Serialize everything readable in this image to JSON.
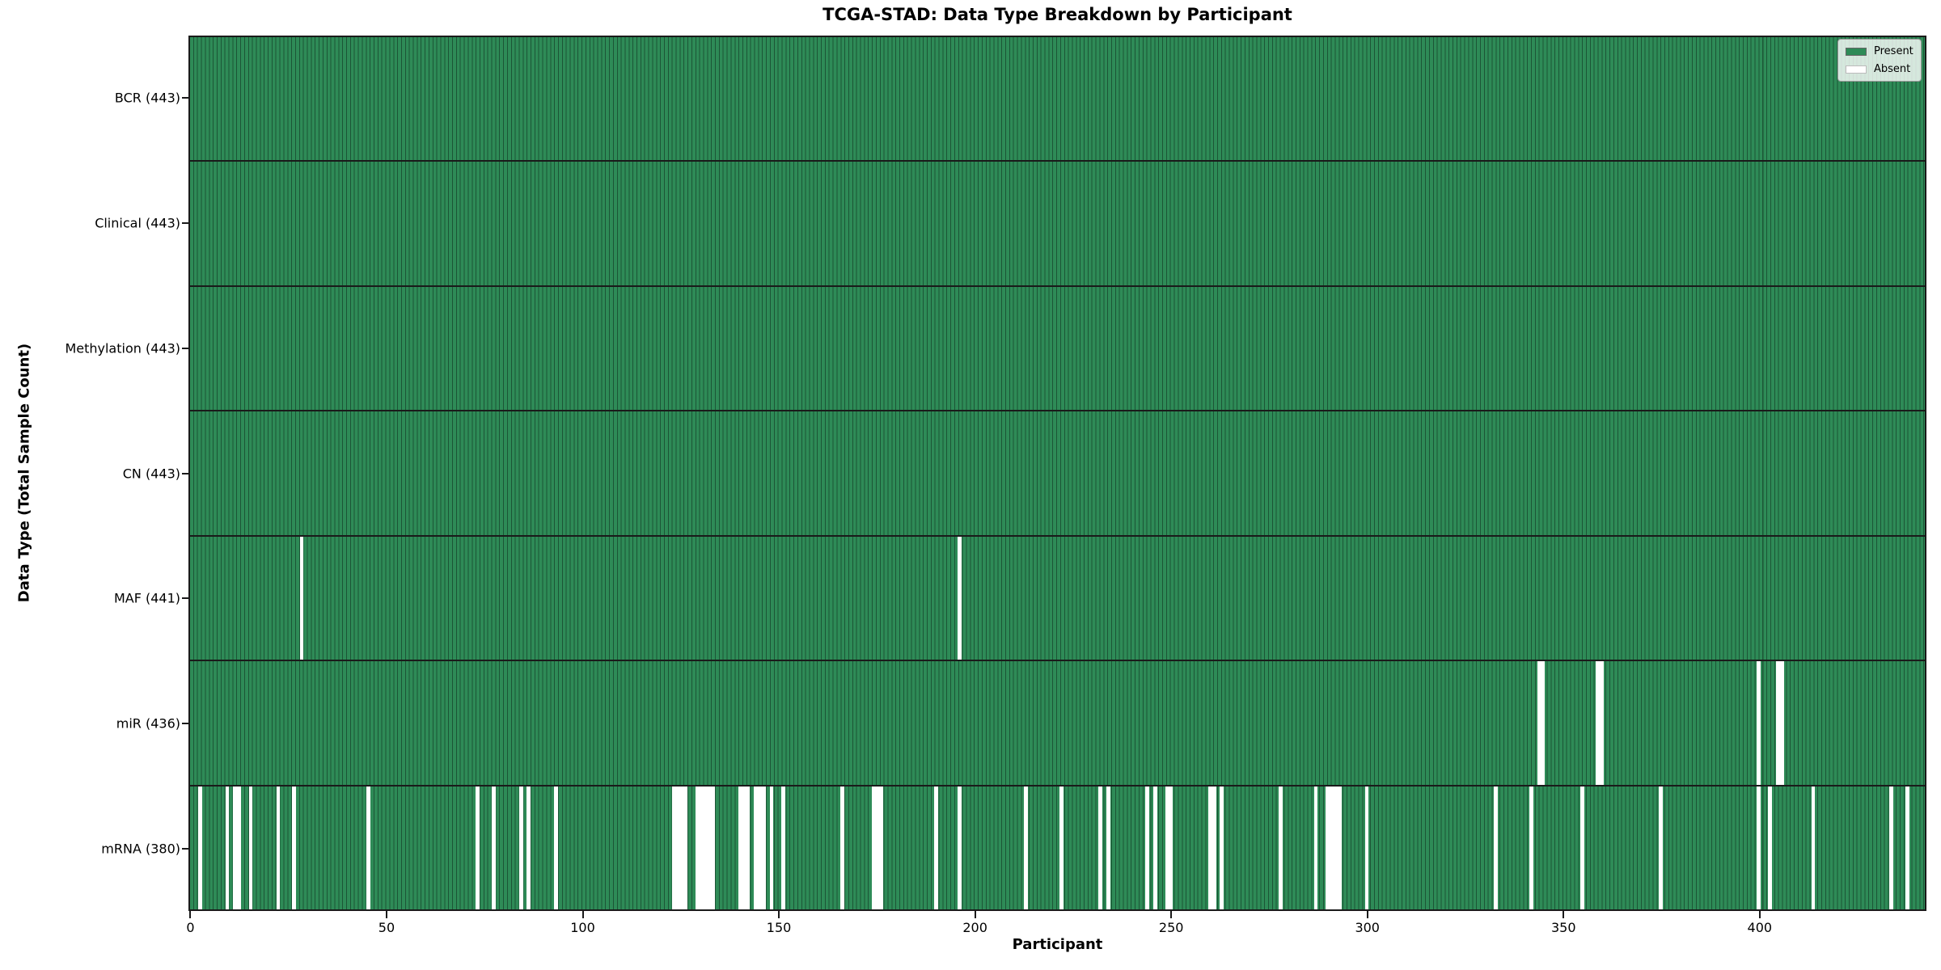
{
  "chart_data": {
    "type": "heatmap",
    "title": "TCGA-STAD: Data Type Breakdown by Participant",
    "xlabel": "Participant",
    "ylabel": "Data Type (Total Sample Count)",
    "n_participants": 443,
    "x_ticks": [
      0,
      50,
      100,
      150,
      200,
      250,
      300,
      350,
      400
    ],
    "x_range": [
      0,
      443
    ],
    "grid": false,
    "legend_position": "upper right",
    "colors": {
      "present": "#2e8b57",
      "absent": "#ffffff",
      "bar_edge": "#1c5536",
      "frame": "#1a1a1a"
    },
    "legend": [
      {
        "label": "Present",
        "color": "#2e8b57"
      },
      {
        "label": "Absent",
        "color": "#ffffff"
      }
    ],
    "rows": [
      {
        "name": "BCR",
        "label": "BCR (443)",
        "present_count": 443,
        "absent_participants": []
      },
      {
        "name": "Clinical",
        "label": "Clinical (443)",
        "present_count": 443,
        "absent_participants": []
      },
      {
        "name": "Methylation",
        "label": "Methylation (443)",
        "present_count": 443,
        "absent_participants": []
      },
      {
        "name": "CN",
        "label": "CN (443)",
        "present_count": 443,
        "absent_participants": []
      },
      {
        "name": "MAF",
        "label": "MAF (441)",
        "present_count": 441,
        "absent_participants": [
          28,
          196
        ]
      },
      {
        "name": "miR",
        "label": "miR (436)",
        "present_count": 436,
        "absent_participants": [
          344,
          345,
          359,
          360,
          400,
          405,
          406
        ]
      },
      {
        "name": "mRNA",
        "label": "mRNA (380)",
        "present_count": 380,
        "absent_participants": [
          2,
          9,
          11,
          12,
          15,
          22,
          26,
          45,
          73,
          77,
          84,
          86,
          93,
          123,
          124,
          125,
          126,
          129,
          130,
          131,
          132,
          133,
          140,
          141,
          142,
          144,
          145,
          146,
          148,
          151,
          166,
          174,
          175,
          176,
          190,
          196,
          213,
          222,
          232,
          234,
          244,
          246,
          249,
          250,
          260,
          261,
          263,
          278,
          287,
          290,
          291,
          292,
          293,
          300,
          333,
          342,
          355,
          375,
          400,
          403,
          414,
          434,
          438
        ]
      }
    ]
  }
}
